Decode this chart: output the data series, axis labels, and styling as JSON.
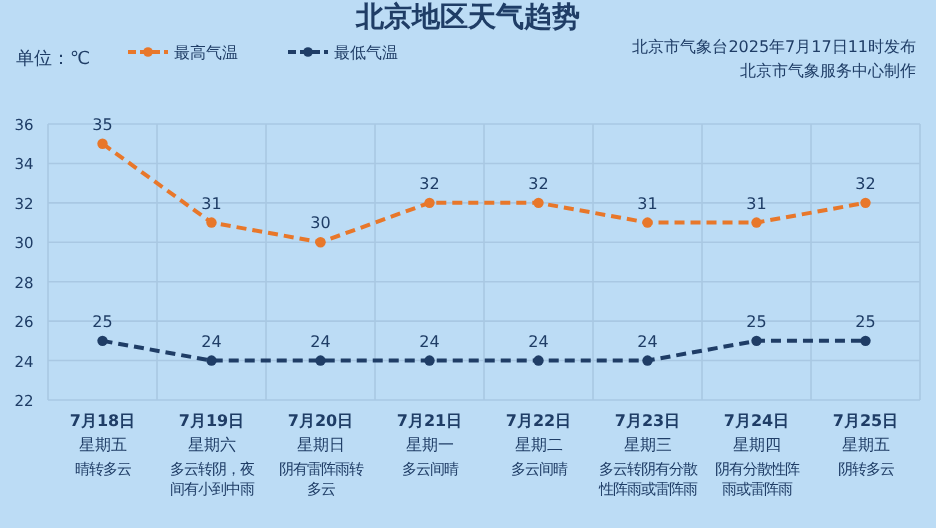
{
  "chart_data": {
    "type": "line",
    "title": "北京地区天气趋势",
    "ylabel": "单位：℃",
    "categories": [
      "7月18日",
      "7月19日",
      "7月20日",
      "7月21日",
      "7月22日",
      "7月23日",
      "7月24日",
      "7月25日"
    ],
    "series": [
      {
        "name": "最高气温",
        "color": "#e8772a",
        "values": [
          35,
          31,
          30,
          32,
          32,
          31,
          31,
          32
        ]
      },
      {
        "name": "最低气温",
        "color": "#1f3d66",
        "values": [
          25,
          24,
          24,
          24,
          24,
          24,
          25,
          25
        ]
      }
    ],
    "ylim": [
      22,
      36
    ],
    "yticks": [
      22,
      24,
      26,
      28,
      30,
      32,
      34,
      36
    ],
    "grid": true,
    "legend": "top left",
    "marker": "circle",
    "line_style": "dashed",
    "data_labels": true,
    "annotations": [
      "北京市气象台2025年7月17日11时发布",
      "北京市气象服务中心制作",
      "星期五",
      "星期六",
      "星期日",
      "星期一",
      "星期二",
      "星期三",
      "星期四",
      "星期五",
      "晴转多云",
      "多云转阴，夜间有小到中雨",
      "阴有雷阵雨转多云",
      "多云间晴",
      "多云间晴",
      "多云转阴有分散性阵雨或雷阵雨",
      "阴有分散性阵雨或雷阵雨",
      "阴转多云"
    ]
  }
}
